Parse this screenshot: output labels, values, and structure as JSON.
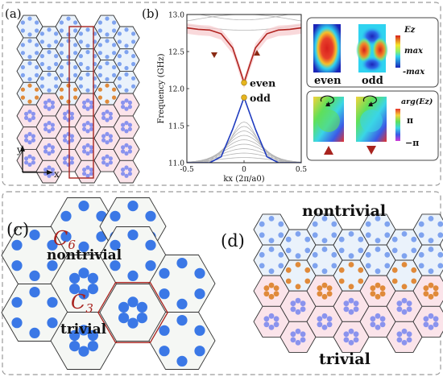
{
  "panels": {
    "a": {
      "label": "(a)",
      "axis_y": "y",
      "axis_x": "x"
    },
    "b": {
      "label": "(b)",
      "chart_data": {
        "type": "line",
        "xlabel": "kx (2π/a0)",
        "ylabel": "Frequency (GHz)",
        "xlim": [
          -0.5,
          0.5
        ],
        "ylim": [
          11.0,
          13.0
        ],
        "x_ticks": [
          "-0.5",
          "0",
          "0.5"
        ],
        "y_ticks": [
          "11.0",
          "11.5",
          "12.0",
          "12.5",
          "13.0"
        ],
        "series": [
          {
            "name": "even",
            "color": "#b0221e",
            "x": [
              -0.5,
              -0.4,
              -0.3,
              -0.2,
              -0.1,
              -0.05,
              0,
              0.05,
              0.1,
              0.2,
              0.3,
              0.4,
              0.5
            ],
            "y": [
              12.82,
              12.8,
              12.79,
              12.74,
              12.55,
              12.32,
              12.08,
              12.32,
              12.55,
              12.74,
              12.79,
              12.8,
              12.82
            ]
          },
          {
            "name": "odd",
            "color": "#1f3bbf",
            "x": [
              -0.5,
              -0.3,
              -0.2,
              -0.1,
              0,
              0.1,
              0.2,
              0.3,
              0.5
            ],
            "y": [
              11.0,
              11.0,
              11.08,
              11.45,
              11.88,
              11.45,
              11.08,
              11.0,
              11.0
            ]
          }
        ],
        "mode_points": [
          {
            "label": "even",
            "x": 0,
            "y": 12.08
          },
          {
            "label": "odd",
            "x": 0,
            "y": 11.88
          }
        ]
      },
      "field_labels": {
        "even": "even",
        "odd": "odd",
        "ez_title": "Ez",
        "ez_max": "max",
        "ez_min": "-max"
      },
      "phase_labels": {
        "title": "arg(Ez)",
        "max": "π",
        "min": "−π"
      }
    },
    "c": {
      "label": "(c)",
      "c6": "C6",
      "c6_base": "C",
      "c6_sub": "6",
      "c3_base": "C",
      "c3_sub": "3",
      "top_text": "nontrivial",
      "bottom_text": "trivial"
    },
    "d": {
      "label": "(d)",
      "top_text": "nontrivial",
      "bottom_text": "trivial"
    }
  },
  "colors": {
    "dot_blue": "#3b78e6",
    "dot_light_blue": "#7fa3ef",
    "dot_orange": "#e08a3a",
    "hex_fill_blue": "#eaf2fb",
    "hex_fill_pink": "#fbe4ea",
    "accent_red": "#a8231e"
  }
}
